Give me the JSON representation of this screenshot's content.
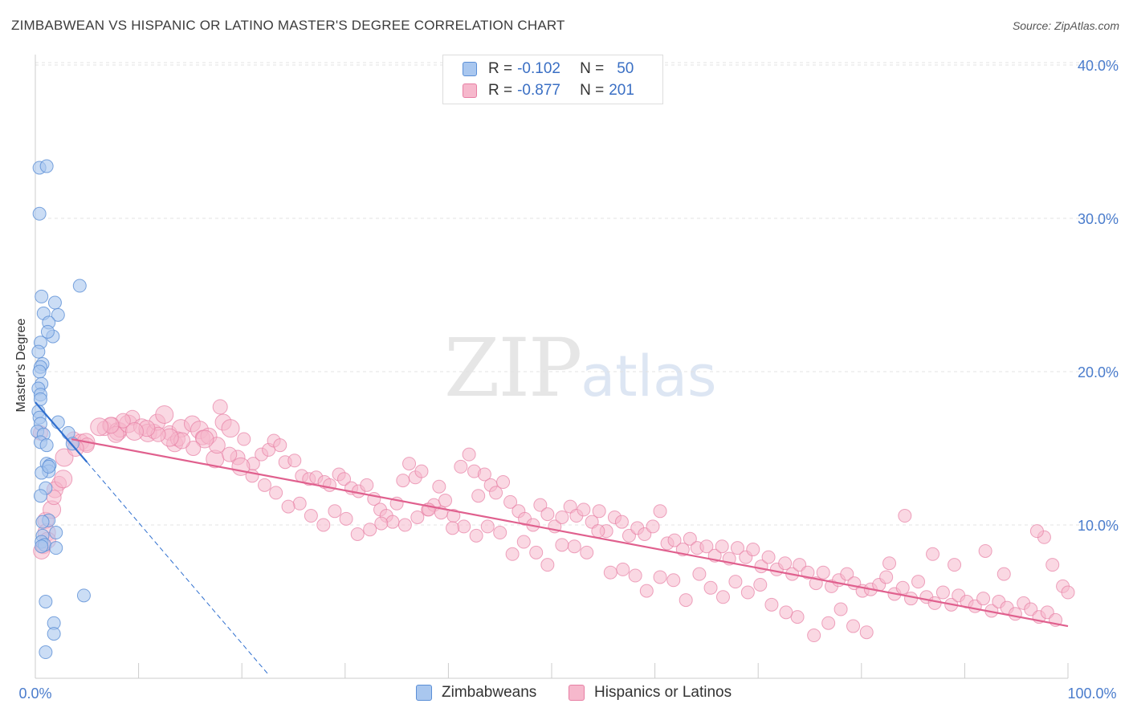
{
  "header": {
    "title": "ZIMBABWEAN VS HISPANIC OR LATINO MASTER'S DEGREE CORRELATION CHART",
    "source": "Source: ZipAtlas.com"
  },
  "watermark": {
    "zip": "ZIP",
    "atlas": "atlas"
  },
  "colors": {
    "blue_fill": "#a9c7ef",
    "blue_stroke": "#5b8fd6",
    "blue_line": "#2f6fcf",
    "pink_fill": "#f6b8cc",
    "pink_stroke": "#e77fa4",
    "pink_line": "#e0608e",
    "grid": "#e3e3e3",
    "tick_label": "#4a7ccc"
  },
  "legend_top": [
    {
      "r_label": "R =",
      "r_value": "-0.102",
      "n_label": "N =",
      "n_value": "50"
    },
    {
      "r_label": "R =",
      "r_value": "-0.877",
      "n_label": "N =",
      "n_value": "201"
    }
  ],
  "legend_bottom": [
    "Zimbabweans",
    "Hispanics or Latinos"
  ],
  "chart_data": {
    "type": "scatter",
    "title": "ZIMBABWEAN VS HISPANIC OR LATINO MASTER'S DEGREE CORRELATION CHART",
    "xlabel": "",
    "ylabel": "Master's Degree",
    "xlim": [
      0,
      100
    ],
    "ylim": [
      0,
      42
    ],
    "x_tick_labels": [
      "0.0%",
      "100.0%"
    ],
    "y_ticks": [
      10,
      20,
      30,
      40
    ],
    "y_tick_labels": [
      "10.0%",
      "20.0%",
      "30.0%",
      "40.0%"
    ],
    "grid": true,
    "legend_position": "top-center",
    "series": [
      {
        "name": "Zimbabweans",
        "R": -0.102,
        "N": 50,
        "trend": {
          "x": [
            0,
            5
          ],
          "y": [
            18.0,
            14.1
          ]
        },
        "trend_extension": {
          "x": [
            5,
            22.5
          ],
          "y": [
            14.1,
            0.3
          ]
        },
        "points": [
          [
            0.4,
            33.3
          ],
          [
            1.1,
            33.4
          ],
          [
            0.4,
            30.3
          ],
          [
            4.3,
            25.6
          ],
          [
            0.6,
            24.9
          ],
          [
            1.9,
            24.5
          ],
          [
            0.8,
            23.8
          ],
          [
            2.2,
            23.7
          ],
          [
            1.3,
            23.2
          ],
          [
            1.7,
            22.3
          ],
          [
            1.2,
            22.6
          ],
          [
            0.5,
            21.9
          ],
          [
            0.3,
            21.3
          ],
          [
            0.7,
            20.5
          ],
          [
            0.5,
            20.3
          ],
          [
            0.4,
            20.0
          ],
          [
            0.6,
            19.2
          ],
          [
            0.3,
            18.9
          ],
          [
            0.5,
            18.5
          ],
          [
            0.5,
            18.2
          ],
          [
            0.3,
            17.4
          ],
          [
            0.4,
            17.0
          ],
          [
            0.5,
            16.6
          ],
          [
            0.2,
            16.1
          ],
          [
            2.2,
            16.7
          ],
          [
            3.2,
            16.0
          ],
          [
            0.8,
            15.9
          ],
          [
            0.5,
            15.4
          ],
          [
            1.1,
            15.2
          ],
          [
            3.6,
            15.3
          ],
          [
            1.1,
            14.0
          ],
          [
            1.4,
            13.9
          ],
          [
            1.3,
            13.5
          ],
          [
            0.6,
            13.4
          ],
          [
            1.0,
            12.4
          ],
          [
            0.5,
            11.9
          ],
          [
            1.3,
            10.3
          ],
          [
            0.7,
            10.2
          ],
          [
            2.0,
            9.5
          ],
          [
            0.7,
            9.3
          ],
          [
            0.6,
            8.9
          ],
          [
            0.9,
            8.7
          ],
          [
            2.0,
            8.5
          ],
          [
            0.6,
            8.6
          ],
          [
            4.7,
            5.4
          ],
          [
            1.0,
            5.0
          ],
          [
            1.8,
            3.6
          ],
          [
            1.8,
            2.9
          ],
          [
            1.0,
            1.7
          ],
          [
            1.3,
            13.8
          ]
        ]
      },
      {
        "name": "Hispanics or Latinos",
        "R": -0.877,
        "N": 201,
        "trend": {
          "x": [
            3.5,
            100
          ],
          "y": [
            15.6,
            3.4
          ]
        },
        "points": [
          [
            0.5,
            16.0
          ],
          [
            1.0,
            10.3
          ],
          [
            1.6,
            11.0
          ],
          [
            2.3,
            12.7
          ],
          [
            1.9,
            12.3
          ],
          [
            1.1,
            9.5
          ],
          [
            0.8,
            8.6
          ],
          [
            0.6,
            8.3
          ],
          [
            2.8,
            14.4
          ],
          [
            3.7,
            15.6
          ],
          [
            4.4,
            15.4
          ],
          [
            4.9,
            15.4
          ],
          [
            6.7,
            16.3
          ],
          [
            7.4,
            16.5
          ],
          [
            8.0,
            16.1
          ],
          [
            8.2,
            16.2
          ],
          [
            7.8,
            15.9
          ],
          [
            9.0,
            16.6
          ],
          [
            9.4,
            17.0
          ],
          [
            10.3,
            16.4
          ],
          [
            10.9,
            16.0
          ],
          [
            11.5,
            16.1
          ],
          [
            11.8,
            16.7
          ],
          [
            12.5,
            17.2
          ],
          [
            13.0,
            16.0
          ],
          [
            13.5,
            15.3
          ],
          [
            14.1,
            16.3
          ],
          [
            13.8,
            15.6
          ],
          [
            15.2,
            16.6
          ],
          [
            15.9,
            16.2
          ],
          [
            16.2,
            15.7
          ],
          [
            16.8,
            15.8
          ],
          [
            17.4,
            14.3
          ],
          [
            17.9,
            17.7
          ],
          [
            18.2,
            16.7
          ],
          [
            18.9,
            16.3
          ],
          [
            19.6,
            14.4
          ],
          [
            20.2,
            15.6
          ],
          [
            21.1,
            14.0
          ],
          [
            21.9,
            14.6
          ],
          [
            22.6,
            14.9
          ],
          [
            23.1,
            15.5
          ],
          [
            23.7,
            15.2
          ],
          [
            24.2,
            14.1
          ],
          [
            25.1,
            14.2
          ],
          [
            25.8,
            13.2
          ],
          [
            26.5,
            13.0
          ],
          [
            27.2,
            13.1
          ],
          [
            28.0,
            12.8
          ],
          [
            28.5,
            12.6
          ],
          [
            29.4,
            13.3
          ],
          [
            29.9,
            13.0
          ],
          [
            30.6,
            12.4
          ],
          [
            31.3,
            12.2
          ],
          [
            32.1,
            12.6
          ],
          [
            32.8,
            11.7
          ],
          [
            33.4,
            11.0
          ],
          [
            34.0,
            10.6
          ],
          [
            35.0,
            11.4
          ],
          [
            35.6,
            12.9
          ],
          [
            36.2,
            14.0
          ],
          [
            36.8,
            13.1
          ],
          [
            37.4,
            13.5
          ],
          [
            38.0,
            11.0
          ],
          [
            38.6,
            11.3
          ],
          [
            39.1,
            12.5
          ],
          [
            39.7,
            11.6
          ],
          [
            40.5,
            10.6
          ],
          [
            41.2,
            13.8
          ],
          [
            42.0,
            14.6
          ],
          [
            42.5,
            13.5
          ],
          [
            42.9,
            11.9
          ],
          [
            43.5,
            13.3
          ],
          [
            44.1,
            12.6
          ],
          [
            44.6,
            12.1
          ],
          [
            45.3,
            12.8
          ],
          [
            46.0,
            11.5
          ],
          [
            46.8,
            10.9
          ],
          [
            47.4,
            10.4
          ],
          [
            48.2,
            10.0
          ],
          [
            48.9,
            11.3
          ],
          [
            49.6,
            10.7
          ],
          [
            50.3,
            9.9
          ],
          [
            51.0,
            10.5
          ],
          [
            51.8,
            11.2
          ],
          [
            52.4,
            10.6
          ],
          [
            53.1,
            11.0
          ],
          [
            53.9,
            10.2
          ],
          [
            54.6,
            10.9
          ],
          [
            55.3,
            9.6
          ],
          [
            56.1,
            10.5
          ],
          [
            56.8,
            10.2
          ],
          [
            57.5,
            9.3
          ],
          [
            58.3,
            9.8
          ],
          [
            59.0,
            9.4
          ],
          [
            59.8,
            9.9
          ],
          [
            60.5,
            10.9
          ],
          [
            61.2,
            8.8
          ],
          [
            61.9,
            9.0
          ],
          [
            62.7,
            8.4
          ],
          [
            63.4,
            9.1
          ],
          [
            64.1,
            8.5
          ],
          [
            65.0,
            8.6
          ],
          [
            65.8,
            8.0
          ],
          [
            66.5,
            8.6
          ],
          [
            67.2,
            7.8
          ],
          [
            68.0,
            8.5
          ],
          [
            68.8,
            7.9
          ],
          [
            69.5,
            8.4
          ],
          [
            70.3,
            7.3
          ],
          [
            71.0,
            7.9
          ],
          [
            71.8,
            7.1
          ],
          [
            72.6,
            7.5
          ],
          [
            73.3,
            6.8
          ],
          [
            74.0,
            7.4
          ],
          [
            74.8,
            6.9
          ],
          [
            75.6,
            6.2
          ],
          [
            76.3,
            6.9
          ],
          [
            77.1,
            6.0
          ],
          [
            77.8,
            6.4
          ],
          [
            78.6,
            6.8
          ],
          [
            79.3,
            6.2
          ],
          [
            80.1,
            5.7
          ],
          [
            80.9,
            5.8
          ],
          [
            81.7,
            6.1
          ],
          [
            82.4,
            6.6
          ],
          [
            83.2,
            5.5
          ],
          [
            84.0,
            5.9
          ],
          [
            84.8,
            5.2
          ],
          [
            85.5,
            6.3
          ],
          [
            86.3,
            5.3
          ],
          [
            87.1,
            4.9
          ],
          [
            87.9,
            5.6
          ],
          [
            88.7,
            4.8
          ],
          [
            89.4,
            5.4
          ],
          [
            90.2,
            5.0
          ],
          [
            91.0,
            4.7
          ],
          [
            91.8,
            5.2
          ],
          [
            92.6,
            4.4
          ],
          [
            93.3,
            5.0
          ],
          [
            94.1,
            4.6
          ],
          [
            94.9,
            4.2
          ],
          [
            95.7,
            4.9
          ],
          [
            96.4,
            4.5
          ],
          [
            97.2,
            4.0
          ],
          [
            98.0,
            4.3
          ],
          [
            98.8,
            3.8
          ],
          [
            99.5,
            6.0
          ],
          [
            100.0,
            5.6
          ],
          [
            98.5,
            7.4
          ],
          [
            97.7,
            9.2
          ],
          [
            97.0,
            9.6
          ],
          [
            93.8,
            6.8
          ],
          [
            92.0,
            8.3
          ],
          [
            89.0,
            7.4
          ],
          [
            86.9,
            8.1
          ],
          [
            84.2,
            10.6
          ],
          [
            82.7,
            7.5
          ],
          [
            80.5,
            3.0
          ],
          [
            79.2,
            3.4
          ],
          [
            78.0,
            4.5
          ],
          [
            76.8,
            3.6
          ],
          [
            75.4,
            2.8
          ],
          [
            73.8,
            4.0
          ],
          [
            72.7,
            4.3
          ],
          [
            71.3,
            4.8
          ],
          [
            70.2,
            6.1
          ],
          [
            69.0,
            5.6
          ],
          [
            67.8,
            6.3
          ],
          [
            66.6,
            5.3
          ],
          [
            65.4,
            5.9
          ],
          [
            64.3,
            6.8
          ],
          [
            63.0,
            5.1
          ],
          [
            61.8,
            6.4
          ],
          [
            60.5,
            6.6
          ],
          [
            59.2,
            5.7
          ],
          [
            58.1,
            6.7
          ],
          [
            56.9,
            7.1
          ],
          [
            55.7,
            6.9
          ],
          [
            54.5,
            9.6
          ],
          [
            53.4,
            8.2
          ],
          [
            52.2,
            8.6
          ],
          [
            51.0,
            8.7
          ],
          [
            49.6,
            7.4
          ],
          [
            48.5,
            8.2
          ],
          [
            47.3,
            8.9
          ],
          [
            46.2,
            8.1
          ],
          [
            45.0,
            9.5
          ],
          [
            43.8,
            9.9
          ],
          [
            42.7,
            9.3
          ],
          [
            41.5,
            9.9
          ],
          [
            40.4,
            9.8
          ],
          [
            39.3,
            10.8
          ],
          [
            38.1,
            11.0
          ],
          [
            37.0,
            10.5
          ],
          [
            35.8,
            10.0
          ],
          [
            34.6,
            10.2
          ],
          [
            33.5,
            10.1
          ],
          [
            32.4,
            9.7
          ],
          [
            31.2,
            9.4
          ],
          [
            30.1,
            10.4
          ],
          [
            29.0,
            10.9
          ],
          [
            27.9,
            10.0
          ],
          [
            26.7,
            10.6
          ],
          [
            25.6,
            11.4
          ],
          [
            24.5,
            11.2
          ],
          [
            23.3,
            12.1
          ],
          [
            22.2,
            12.6
          ],
          [
            21.0,
            13.2
          ],
          [
            19.9,
            13.8
          ],
          [
            18.8,
            14.6
          ],
          [
            17.6,
            15.2
          ],
          [
            16.4,
            15.6
          ],
          [
            15.3,
            15.0
          ],
          [
            14.2,
            15.5
          ],
          [
            13.0,
            15.7
          ],
          [
            11.9,
            15.9
          ],
          [
            10.8,
            16.3
          ],
          [
            9.6,
            16.1
          ],
          [
            8.5,
            16.8
          ],
          [
            7.3,
            16.5
          ],
          [
            6.2,
            16.4
          ],
          [
            5.0,
            15.2
          ],
          [
            3.9,
            15.0
          ],
          [
            2.7,
            13.0
          ],
          [
            1.8,
            11.8
          ],
          [
            1.2,
            9.0
          ]
        ]
      }
    ]
  }
}
